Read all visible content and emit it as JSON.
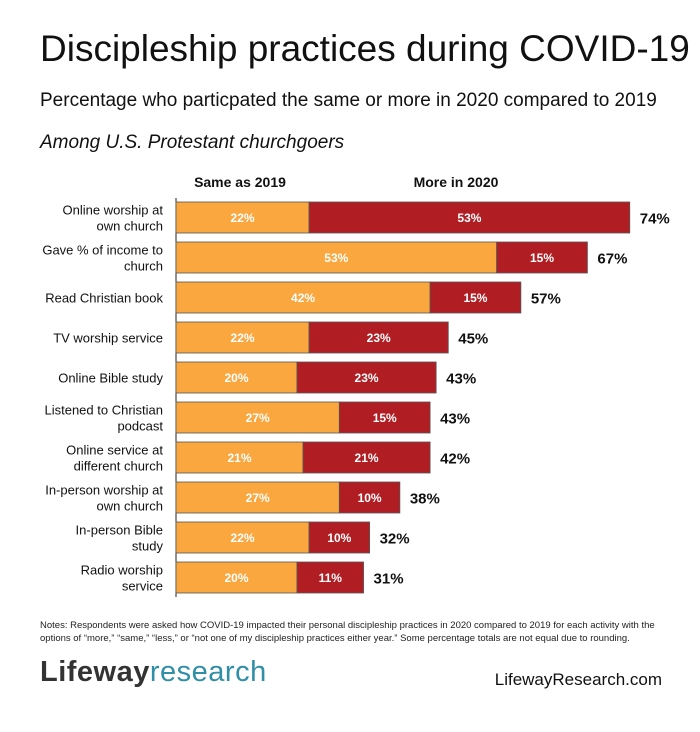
{
  "header": {
    "title": "Discipleship practices during COVID-19",
    "subtitle": "Percentage who particpated the same or more in 2020 compared to 2019",
    "population": "Among U.S. Protestant churchgoers"
  },
  "chart_data": {
    "type": "bar",
    "orientation": "horizontal",
    "stacked": true,
    "categories": [
      "Online worship at own church",
      "Gave % of income to church",
      "Read Christian book",
      "TV worship service",
      "Online Bible study",
      "Listened to Christian podcast",
      "Online service at different church",
      "In-person worship at own church",
      "In-person Bible study",
      "Radio worship service"
    ],
    "category_lines": [
      [
        "Online worship at",
        "own church"
      ],
      [
        "Gave % of income to",
        "church"
      ],
      [
        "Read Christian book"
      ],
      [
        "TV worship service"
      ],
      [
        "Online Bible study"
      ],
      [
        "Listened to Christian",
        "podcast"
      ],
      [
        "Online service at",
        "different church"
      ],
      [
        "In-person worship at",
        "own church"
      ],
      [
        "In-person Bible",
        "study"
      ],
      [
        "Radio worship",
        "service"
      ]
    ],
    "series": [
      {
        "name": "Same as 2019",
        "color": "#F9A73E",
        "values": [
          22,
          53,
          42,
          22,
          20,
          27,
          21,
          27,
          22,
          20
        ]
      },
      {
        "name": "More in 2020",
        "color": "#B01E23",
        "values": [
          53,
          15,
          15,
          23,
          23,
          15,
          21,
          10,
          10,
          11
        ]
      }
    ],
    "totals": [
      74,
      67,
      57,
      45,
      43,
      43,
      42,
      38,
      32,
      31
    ],
    "value_suffix": "%",
    "legend_position": "top",
    "grid": false
  },
  "footer": {
    "notes": "Notes: Respondents were asked how COVID-19 impacted their personal discipleship practices in 2020 compared to 2019 for each activity with the options of “more,” “same,” “less,” or “not one of my discipleship practices either year.” Some percentage totals are not equal due to rounding.",
    "brand_part1": "Lifeway",
    "brand_part2": "research",
    "website": "LifewayResearch.com"
  }
}
